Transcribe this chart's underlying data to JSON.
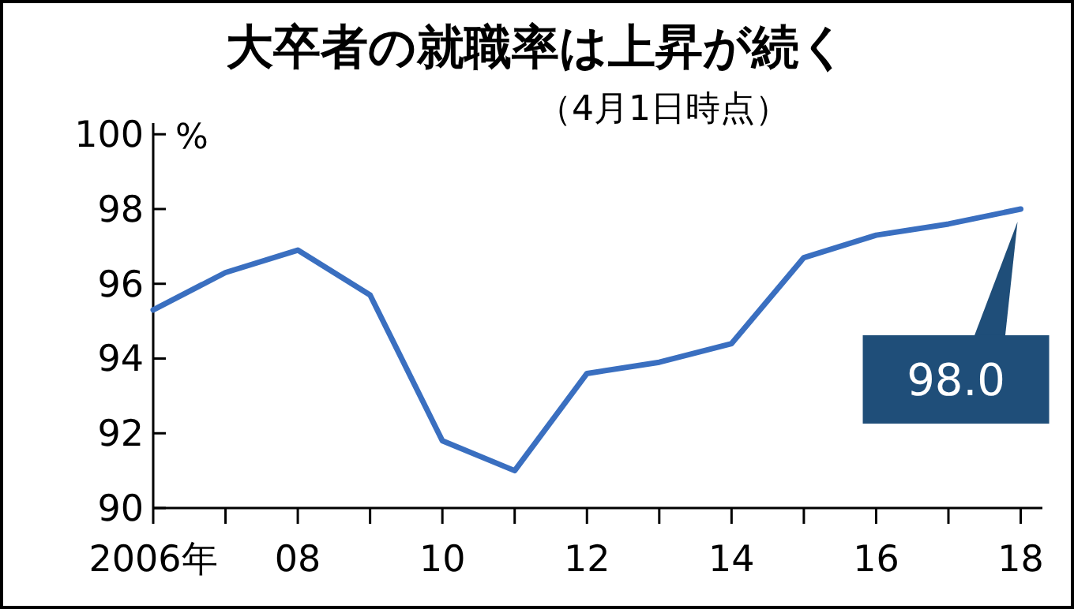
{
  "chart_data": {
    "type": "line",
    "title": "大卒者の就職率は上昇が続く",
    "subtitle": "（4月1日時点）",
    "ylabel": "%",
    "x": [
      2006,
      2007,
      2008,
      2009,
      2010,
      2011,
      2012,
      2013,
      2014,
      2015,
      2016,
      2017,
      2018
    ],
    "values": [
      95.3,
      96.3,
      96.9,
      95.7,
      91.8,
      91.0,
      93.6,
      93.9,
      94.4,
      96.7,
      97.3,
      97.6,
      98.0
    ],
    "color": "#3a6fc0",
    "xlim": [
      2006,
      2018.3
    ],
    "ylim": [
      90,
      100.3
    ],
    "xticks": [
      {
        "value": 2006,
        "label": "2006年"
      },
      {
        "value": 2007,
        "label": null
      },
      {
        "value": 2008,
        "label": "08"
      },
      {
        "value": 2009,
        "label": null
      },
      {
        "value": 2010,
        "label": "10"
      },
      {
        "value": 2011,
        "label": null
      },
      {
        "value": 2012,
        "label": "12"
      },
      {
        "value": 2013,
        "label": null
      },
      {
        "value": 2014,
        "label": "14"
      },
      {
        "value": 2015,
        "label": null
      },
      {
        "value": 2016,
        "label": "16"
      },
      {
        "value": 2017,
        "label": null
      },
      {
        "value": 2018,
        "label": "18"
      }
    ],
    "yticks": [
      90,
      92,
      94,
      96,
      98,
      100
    ],
    "annotations": [
      {
        "text": "98.0",
        "x": 2018,
        "y": 98.0
      }
    ]
  }
}
